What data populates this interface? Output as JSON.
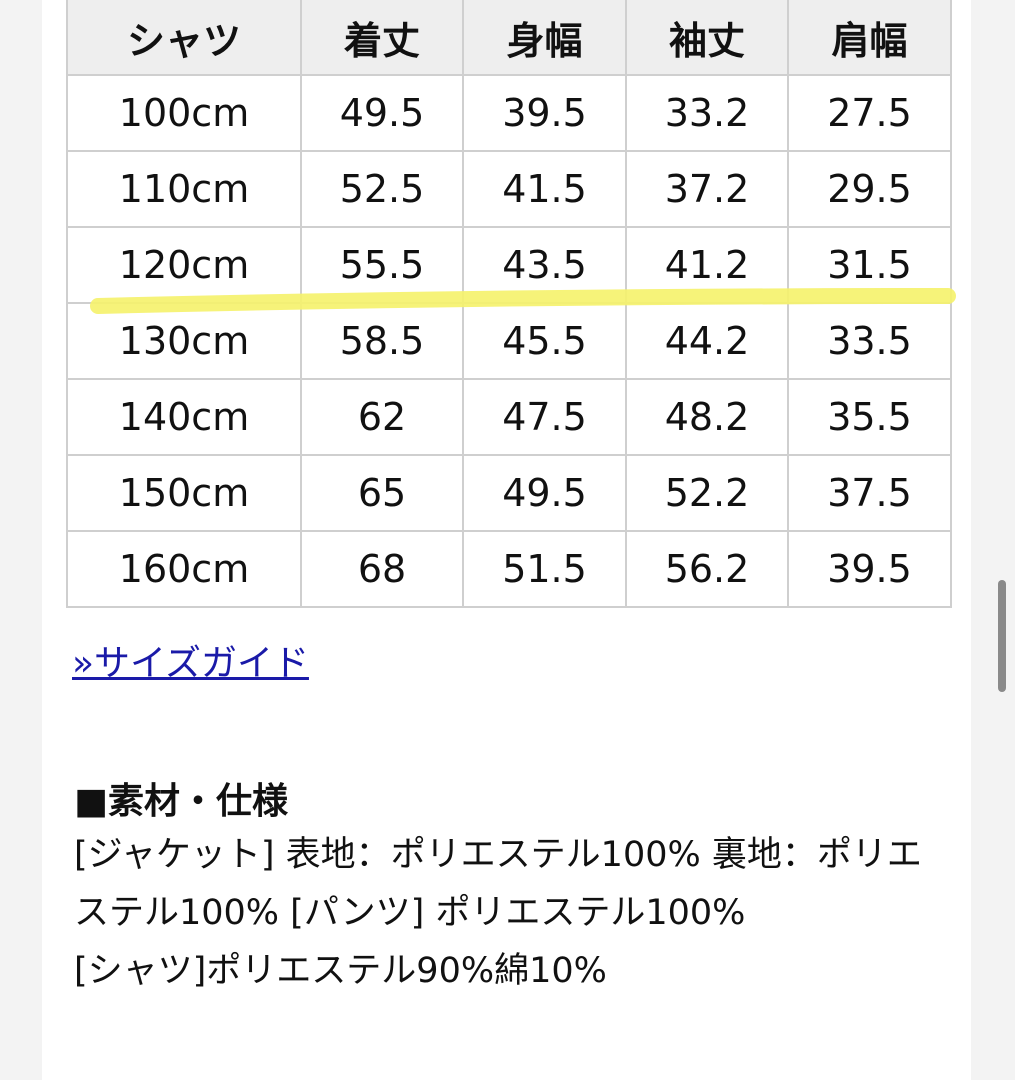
{
  "size_table": {
    "headers": [
      "シャツ",
      "着丈",
      "身幅",
      "袖丈",
      "肩幅"
    ],
    "rows": [
      [
        "100cm",
        "49.5",
        "39.5",
        "33.2",
        "27.5"
      ],
      [
        "110cm",
        "52.5",
        "41.5",
        "37.2",
        "29.5"
      ],
      [
        "120cm",
        "55.5",
        "43.5",
        "41.2",
        "31.5"
      ],
      [
        "130cm",
        "58.5",
        "45.5",
        "44.2",
        "33.5"
      ],
      [
        "140cm",
        "62",
        "47.5",
        "48.2",
        "35.5"
      ],
      [
        "150cm",
        "65",
        "49.5",
        "52.2",
        "37.5"
      ],
      [
        "160cm",
        "68",
        "51.5",
        "56.2",
        "39.5"
      ]
    ],
    "highlight_color": "#f5f26a"
  },
  "size_guide_link": "»サイズガイド",
  "materials": {
    "title": "■素材・仕様",
    "lines": [
      "[ジャケット] 表地：ポリエステル100% 裏地：ポリエステル100% [パンツ] ポリエステル100%",
      "[シャツ]ポリエステル90%綿10%"
    ]
  },
  "colors": {
    "link": "#1a1aa8",
    "header_bg": "#eeeeee",
    "border": "#cfcfcf"
  }
}
